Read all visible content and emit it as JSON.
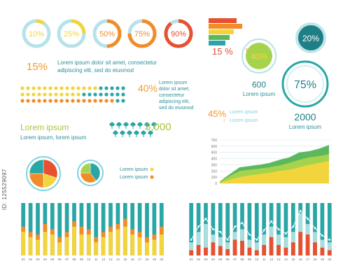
{
  "colors": {
    "teal": "#2aa6a6",
    "cyan": "#7fd3e0",
    "orange": "#f28c28",
    "red": "#e8502f",
    "yellow": "#f2d53c",
    "green": "#5cb85c",
    "lime": "#a6d34c",
    "dark_teal": "#1f7f86",
    "text_teal": "#2b8f9a",
    "text_orange": "#f29a2e"
  },
  "rings": [
    {
      "label": "10%",
      "value": 10,
      "color": "#f2d53c"
    },
    {
      "label": "25%",
      "value": 25,
      "color": "#f2d53c"
    },
    {
      "label": "50%",
      "value": 50,
      "color": "#f28c28"
    },
    {
      "label": "75%",
      "value": 75,
      "color": "#f28c28"
    },
    {
      "label": "90%",
      "value": 90,
      "color": "#e8502f"
    }
  ],
  "stat15": {
    "value": "15%",
    "text_line1": "Lorem ipsum dolor sit amet, consectetur",
    "text_line2": "adipiscing elit, sed do eiusmod"
  },
  "stat40": {
    "value": "40%",
    "text_lines": [
      "Lorem ipsum",
      "dolor sit amet,",
      "consectetur",
      "adipiscing elit,",
      "sed do eiusmod"
    ]
  },
  "lorem_block": {
    "title": "Lorem ipsum",
    "subtitle": "Lorem ipsum, lorem ipsum"
  },
  "icons_count": "3,000",
  "stairs": {
    "value": "15 %",
    "arrow": "↑"
  },
  "circles": {
    "c20": {
      "label": "20%",
      "value": 20
    },
    "c40": {
      "label": "40%",
      "value": 40
    },
    "c75": {
      "label": "75%",
      "value": 75
    },
    "n600": {
      "number": "600",
      "caption": "Lorem ipsum"
    },
    "n2000": {
      "number": "2000",
      "caption": "Lorem ipsum"
    }
  },
  "stat45": {
    "value": "45%",
    "arrow": "↑",
    "lines": [
      "Lorem ipsum",
      "Lorem ipsum"
    ]
  },
  "pie_legend": [
    "Lorem ipsum",
    "Lorem ipsum"
  ],
  "chart_data": [
    {
      "type": "area",
      "ylim": [
        0,
        700
      ],
      "yticks": [
        "0",
        "100",
        "200",
        "300",
        "400",
        "500",
        "600",
        "700"
      ],
      "series": [
        {
          "color": "#5cb85c",
          "values": [
            30,
            150,
            260,
            280,
            300,
            330,
            380,
            420,
            500,
            520,
            560,
            620
          ]
        },
        {
          "color": "#a6d34c",
          "values": [
            20,
            120,
            200,
            220,
            240,
            260,
            290,
            330,
            380,
            420,
            440,
            470
          ]
        },
        {
          "color": "#f2d53c",
          "values": [
            10,
            60,
            100,
            130,
            150,
            170,
            200,
            220,
            260,
            300,
            330,
            360
          ]
        }
      ]
    },
    {
      "type": "pie",
      "slices": [
        {
          "value": 30,
          "color": "#e8502f"
        },
        {
          "value": 20,
          "color": "#f2d53c"
        },
        {
          "value": 25,
          "color": "#f28c28"
        },
        {
          "value": 25,
          "color": "#2aa6a6"
        }
      ]
    },
    {
      "type": "pie",
      "slices": [
        {
          "value": 40,
          "color": "#2aa6a6"
        },
        {
          "value": 35,
          "color": "#f28c28"
        },
        {
          "value": 25,
          "color": "#a6d34c"
        }
      ]
    },
    {
      "type": "bar",
      "categories": [
        "01",
        "02",
        "03",
        "04",
        "05",
        "06",
        "07",
        "08",
        "09",
        "10",
        "11",
        "12",
        "13",
        "14",
        "15",
        "16",
        "17",
        "18",
        "19",
        "20"
      ],
      "series": [
        {
          "color": "#2aa6a6",
          "values": [
            100,
            100,
            100,
            100,
            100,
            100,
            100,
            100,
            100,
            100,
            100,
            100,
            100,
            100,
            100,
            100,
            100,
            100,
            100,
            100
          ]
        },
        {
          "color": "#f28c28",
          "values": [
            55,
            45,
            40,
            60,
            50,
            35,
            45,
            65,
            55,
            50,
            35,
            45,
            55,
            60,
            70,
            50,
            45,
            35,
            40,
            55
          ]
        },
        {
          "color": "#f2d53c",
          "values": [
            45,
            35,
            30,
            45,
            40,
            25,
            35,
            55,
            40,
            40,
            25,
            35,
            45,
            50,
            55,
            40,
            35,
            25,
            30,
            40
          ]
        }
      ]
    },
    {
      "type": "bar",
      "categories": [
        "01",
        "02",
        "03",
        "04",
        "05",
        "06",
        "07",
        "08",
        "09",
        "10",
        "11",
        "12",
        "13",
        "14",
        "15",
        "16",
        "17",
        "18",
        "19",
        "20"
      ],
      "series": [
        {
          "color": "#2aa6a6",
          "values": [
            100,
            100,
            100,
            100,
            100,
            100,
            100,
            100,
            100,
            100,
            100,
            100,
            100,
            100,
            100,
            100,
            100,
            100,
            100,
            100
          ]
        },
        {
          "color": "#a8dede",
          "values": [
            25,
            45,
            60,
            40,
            35,
            25,
            45,
            50,
            30,
            25,
            40,
            55,
            40,
            35,
            45,
            80,
            60,
            45,
            30,
            25
          ]
        },
        {
          "color": "#e8502f",
          "values": [
            10,
            20,
            15,
            25,
            18,
            12,
            30,
            28,
            15,
            10,
            20,
            35,
            20,
            15,
            25,
            45,
            40,
            25,
            15,
            10
          ]
        }
      ],
      "line": [
        30,
        55,
        70,
        50,
        45,
        30,
        55,
        62,
        40,
        30,
        48,
        65,
        50,
        42,
        55,
        85,
        70,
        52,
        38,
        30
      ]
    }
  ],
  "side_code": "ID: 125529097"
}
